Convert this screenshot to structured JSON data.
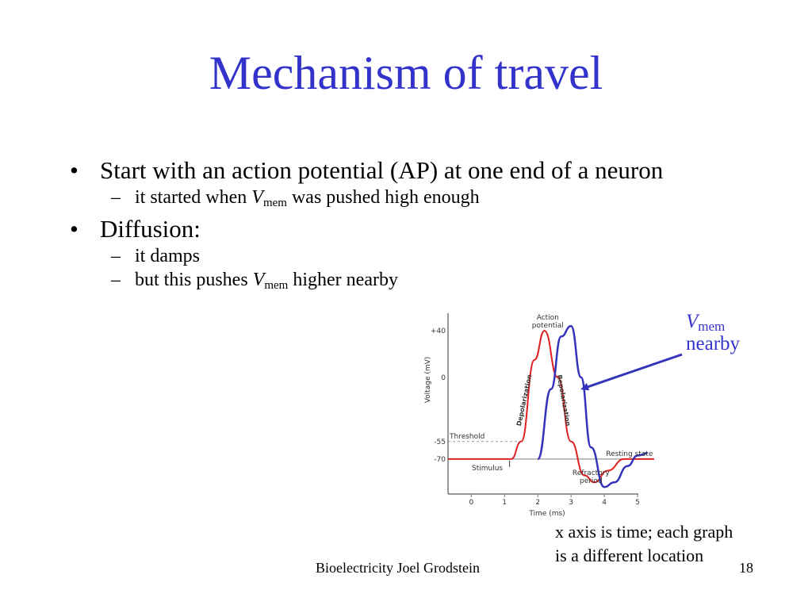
{
  "slide": {
    "title": "Mechanism of travel",
    "bullets": [
      {
        "text": "Start with an action potential (AP) at one end of a neuron"
      },
      {
        "pre": "it started when ",
        "var": "V",
        "sub": "mem",
        "post": " was pushed high enough"
      },
      {
        "text": "Diffusion:"
      },
      {
        "text": "it damps"
      },
      {
        "pre": "but this pushes ",
        "var": "V",
        "sub": "mem",
        "post": " higher nearby"
      }
    ],
    "vmem_annotation": {
      "var": "V",
      "sub": "mem",
      "text": "nearby"
    },
    "caption_line1": "x axis is time; each graph",
    "caption_line2": "is a different location",
    "footer": "Bioelectricity Joel Grodstein",
    "page_number": "18"
  },
  "chart_data": {
    "type": "line",
    "xlabel": "Time (ms)",
    "ylabel": "Voltage (mV)",
    "x_ticks": [
      "0",
      "1",
      "2",
      "3",
      "4",
      "5"
    ],
    "y_ticks": [
      "+40",
      "0",
      "-55",
      "-70"
    ],
    "xlim": [
      -0.7,
      5.5
    ],
    "ylim": [
      -100,
      55
    ],
    "threshold": -55,
    "resting": -70,
    "labels": {
      "action_potential": [
        "Action",
        "potential"
      ],
      "depolarization": "Depolarization",
      "repolarization": "Repolarization",
      "threshold": "Threshold",
      "resting_state": "Resting state",
      "stimulus": "Stimulus",
      "refractory": [
        "Refractory",
        "period"
      ]
    },
    "series": [
      {
        "color": "#e02020",
        "x": [
          -0.7,
          1.2,
          1.5,
          1.9,
          2.2,
          2.6,
          3.0,
          3.4,
          3.7,
          4.1,
          4.6,
          5.0,
          5.5
        ],
        "y": [
          -70,
          -70,
          -55,
          15,
          40,
          0,
          -55,
          -84,
          -90,
          -80,
          -70,
          -70,
          -70
        ]
      },
      {
        "color": "#3333bb",
        "x": [
          2.0,
          2.4,
          2.7,
          3.0,
          3.3,
          3.6,
          4.0,
          4.3,
          4.7,
          5.0,
          5.3
        ],
        "y": [
          -70,
          -10,
          35,
          44,
          0,
          -60,
          -94,
          -90,
          -76,
          -67,
          -65
        ]
      }
    ]
  },
  "colors": {
    "title": "#3333cc",
    "annotation": "#3333cc",
    "ap_red": "#e02020",
    "ap_blue": "#3333bb",
    "arrow": "#3333bb"
  }
}
